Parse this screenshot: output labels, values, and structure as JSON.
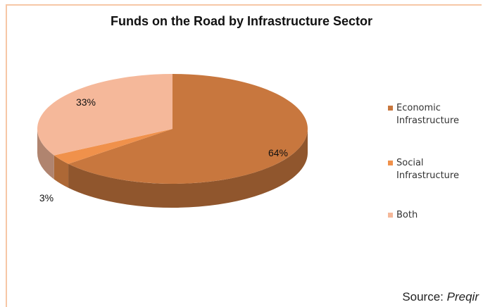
{
  "chart_data": {
    "type": "pie",
    "title": "Funds on the Road by Infrastructure Sector",
    "categories": [
      "Economic Infrastructure",
      "Social Infrastructure",
      "Both"
    ],
    "values": [
      64,
      3,
      33
    ],
    "data_labels": [
      "64%",
      "3%",
      "33%"
    ],
    "legend_position": "right",
    "colors": [
      "#c8773e",
      "#f0914b",
      "#f5b89a"
    ]
  },
  "source": {
    "label": "Source:",
    "name": "Preqir"
  }
}
